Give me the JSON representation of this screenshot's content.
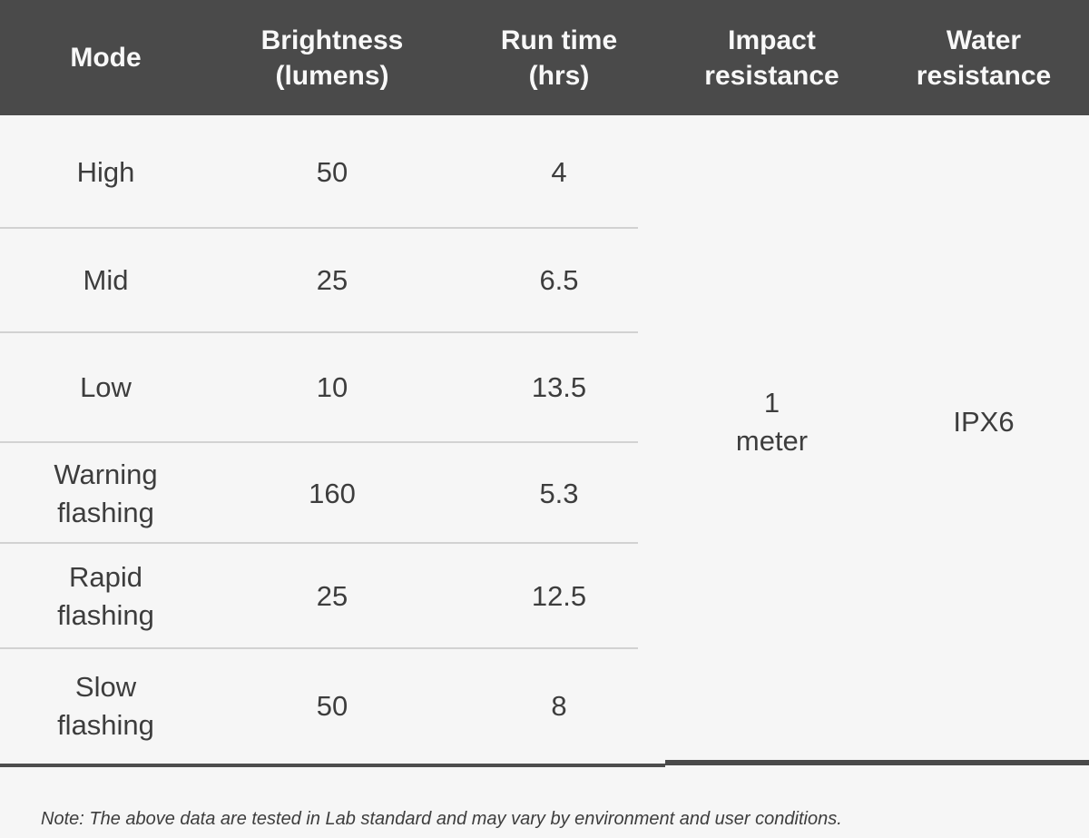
{
  "colors": {
    "header-bg": "#4a4a4a",
    "header-text": "#f8f8f8",
    "body-bg": "#f6f6f6",
    "body-text": "#3d3d3d",
    "divider": "#d2d2d2",
    "border-dark": "#4d4d4d"
  },
  "header": {
    "mode": {
      "line1": "Mode"
    },
    "brightness": {
      "line1": "Brightness",
      "line2": "(lumens)"
    },
    "runtime": {
      "line1": "Run time",
      "line2": "(hrs)"
    },
    "impact": {
      "line1": "Impact",
      "line2": "resistance"
    },
    "water": {
      "line1": "Water",
      "line2": "resistance"
    }
  },
  "rows": [
    {
      "mode_line1": "High",
      "brightness": "50",
      "runtime": "4"
    },
    {
      "mode_line1": "Mid",
      "brightness": "25",
      "runtime": "6.5"
    },
    {
      "mode_line1": "Low",
      "brightness": "10",
      "runtime": "13.5"
    },
    {
      "mode_line1": "Warning",
      "mode_line2": "flashing",
      "brightness": "160",
      "runtime": "5.3"
    },
    {
      "mode_line1": "Rapid",
      "mode_line2": "flashing",
      "brightness": "25",
      "runtime": "12.5"
    },
    {
      "mode_line1": "Slow",
      "mode_line2": "flashing",
      "brightness": "50",
      "runtime": "8"
    }
  ],
  "merged": {
    "impact_line1": "1",
    "impact_line2": "meter",
    "water": "IPX6"
  },
  "footnote": "Note: The above data are tested in Lab standard and may vary by environment and user conditions."
}
